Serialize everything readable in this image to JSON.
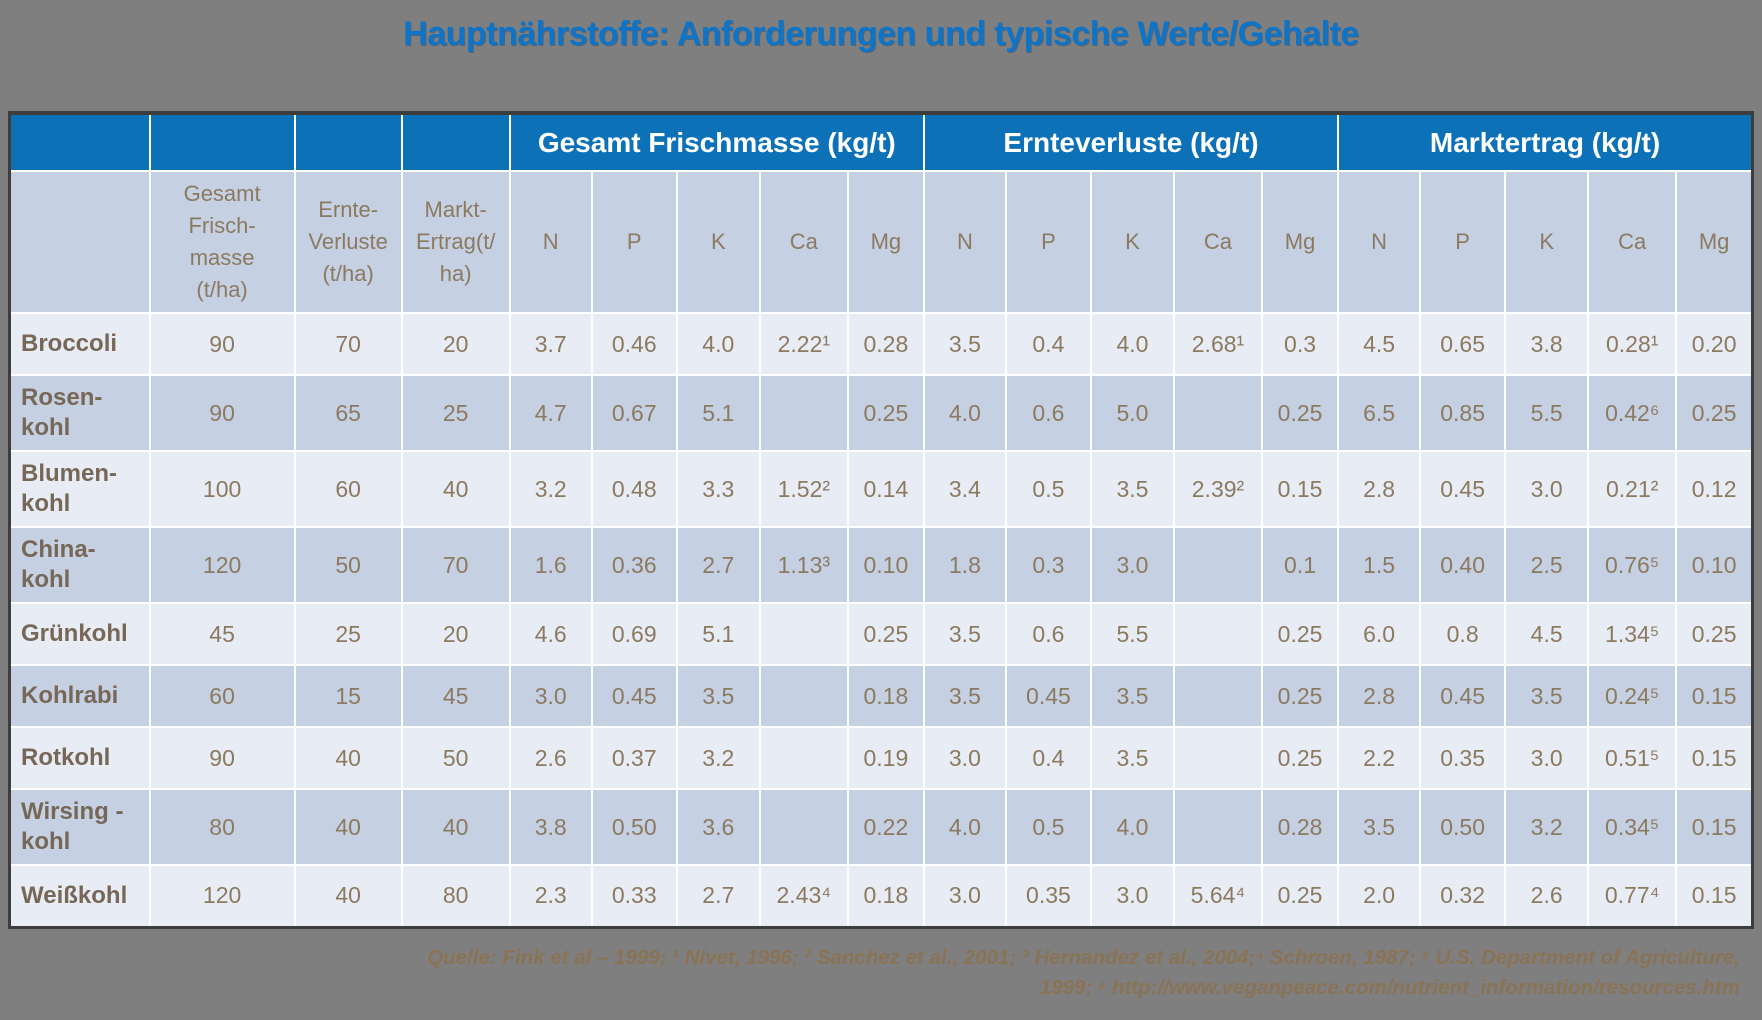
{
  "title": "Hauptnährstoffe: Anforderungen und typische Werte/Gehalte",
  "colors": {
    "page_background": "#7f7f7f",
    "title_blue": "#0d74c7",
    "header_blue": "#0c71b7",
    "header_text": "#ffffff",
    "row_light": "#e8ecf4",
    "row_dark": "#c5d0e3",
    "table_text_brown": "#8b7a60",
    "crop_name_brown": "#776756",
    "footer_text": "#8a7355",
    "grid_line": "#ffffff",
    "outer_border": "#3d3d3d"
  },
  "table": {
    "group_headers": {
      "frischmasse": "Gesamt Frischmasse (kg/t)",
      "ernteverluste": "Ernteverluste (kg/t)",
      "marktertrag": "Marktertrag (kg/t)"
    },
    "stub_headers": {
      "corner": "",
      "gesamt_frischmasse": "Gesamt\nFrisch-\nmasse\n(t/ha)",
      "ernte_verluste": "Ernte-\nVerluste\n(t/ha)",
      "markt_ertrag": "Markt-\nErtrag(t/\nha)"
    },
    "nutrient_headers": [
      "N",
      "P",
      "K",
      "Ca",
      "Mg"
    ],
    "rows": [
      {
        "name": "Broccoli",
        "t_ha": [
          "90",
          "70",
          "20"
        ],
        "frischmasse": [
          "3.7",
          "0.46",
          "4.0",
          "2.22¹",
          "0.28"
        ],
        "ernteverluste": [
          "3.5",
          "0.4",
          "4.0",
          "2.68¹",
          "0.3"
        ],
        "marktertrag": [
          "4.5",
          "0.65",
          "3.8",
          "0.28¹",
          "0.20"
        ]
      },
      {
        "name": "Rosen-\nkohl",
        "t_ha": [
          "90",
          "65",
          "25"
        ],
        "frischmasse": [
          "4.7",
          "0.67",
          "5.1",
          "",
          "0.25"
        ],
        "ernteverluste": [
          "4.0",
          "0.6",
          "5.0",
          "",
          "0.25"
        ],
        "marktertrag": [
          "6.5",
          "0.85",
          "5.5",
          "0.42⁶",
          "0.25"
        ]
      },
      {
        "name": "Blumen-\nkohl",
        "t_ha": [
          "100",
          "60",
          "40"
        ],
        "frischmasse": [
          "3.2",
          "0.48",
          "3.3",
          "1.52²",
          "0.14"
        ],
        "ernteverluste": [
          "3.4",
          "0.5",
          "3.5",
          "2.39²",
          "0.15"
        ],
        "marktertrag": [
          "2.8",
          "0.45",
          "3.0",
          "0.21²",
          "0.12"
        ]
      },
      {
        "name": "China-\nkohl",
        "t_ha": [
          "120",
          "50",
          "70"
        ],
        "frischmasse": [
          "1.6",
          "0.36",
          "2.7",
          "1.13³",
          "0.10"
        ],
        "ernteverluste": [
          "1.8",
          "0.3",
          "3.0",
          "",
          "0.1"
        ],
        "marktertrag": [
          "1.5",
          "0.40",
          "2.5",
          "0.76⁵",
          "0.10"
        ]
      },
      {
        "name": "Grünkohl",
        "t_ha": [
          "45",
          "25",
          "20"
        ],
        "frischmasse": [
          "4.6",
          "0.69",
          "5.1",
          "",
          "0.25"
        ],
        "ernteverluste": [
          "3.5",
          "0.6",
          "5.5",
          "",
          "0.25"
        ],
        "marktertrag": [
          "6.0",
          "0.8",
          "4.5",
          "1.34⁵",
          "0.25"
        ]
      },
      {
        "name": "Kohlrabi",
        "t_ha": [
          "60",
          "15",
          "45"
        ],
        "frischmasse": [
          "3.0",
          "0.45",
          "3.5",
          "",
          "0.18"
        ],
        "ernteverluste": [
          "3.5",
          "0.45",
          "3.5",
          "",
          "0.25"
        ],
        "marktertrag": [
          "2.8",
          "0.45",
          "3.5",
          "0.24⁵",
          "0.15"
        ]
      },
      {
        "name": "Rotkohl",
        "t_ha": [
          "90",
          "40",
          "50"
        ],
        "frischmasse": [
          "2.6",
          "0.37",
          "3.2",
          "",
          "0.19"
        ],
        "ernteverluste": [
          "3.0",
          "0.4",
          "3.5",
          "",
          "0.25"
        ],
        "marktertrag": [
          "2.2",
          "0.35",
          "3.0",
          "0.51⁵",
          "0.15"
        ]
      },
      {
        "name": "Wirsing -\nkohl",
        "t_ha": [
          "80",
          "40",
          "40"
        ],
        "frischmasse": [
          "3.8",
          "0.50",
          "3.6",
          "",
          "0.22"
        ],
        "ernteverluste": [
          "4.0",
          "0.5",
          "4.0",
          "",
          "0.28"
        ],
        "marktertrag": [
          "3.5",
          "0.50",
          "3.2",
          "0.34⁵",
          "0.15"
        ]
      },
      {
        "name": "Weißkohl",
        "t_ha": [
          "120",
          "40",
          "80"
        ],
        "frischmasse": [
          "2.3",
          "0.33",
          "2.7",
          "2.43⁴",
          "0.18"
        ],
        "ernteverluste": [
          "3.0",
          "0.35",
          "3.0",
          "5.64⁴",
          "0.25"
        ],
        "marktertrag": [
          "2.0",
          "0.32",
          "2.6",
          "0.77⁴",
          "0.15"
        ]
      }
    ]
  },
  "footer": {
    "line1": "Quelle: Fink et al – 1999; ¹ Nivet, 1996; ² Sanchez et al., 2001; ³ Hernandez et al., 2004;⁴ Schroen, 1987; ⁵ U.S. Department of Agriculture,",
    "line2": "1999; ⁶ http://www.veganpeace.com/nutrient_information/resources.htm"
  }
}
